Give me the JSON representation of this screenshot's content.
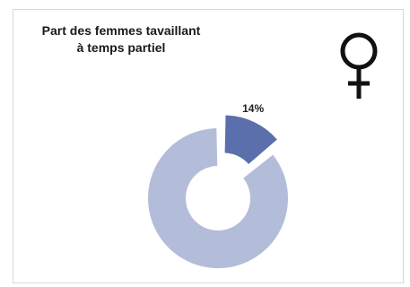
{
  "title": {
    "line1": "Part des femmes tavaillant",
    "line2": "à temps partiel"
  },
  "icon": "venus-icon",
  "colors": {
    "highlight": "#5a6fab",
    "remainder": "#b3bcd9",
    "text": "#222222",
    "icon": "#111111"
  },
  "chart_data": {
    "type": "pie",
    "style": "donut-exploded",
    "categories": [
      "",
      ""
    ],
    "values": [
      14,
      86
    ],
    "data_labels": [
      "14%",
      ""
    ]
  }
}
